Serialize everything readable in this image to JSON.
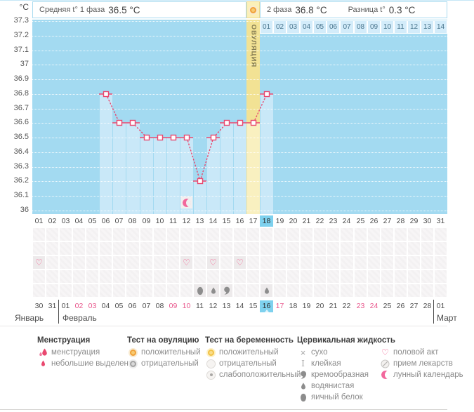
{
  "header": {
    "unit_label": "°C",
    "phase1_label": "Средняя t° 1 фаза",
    "phase1_value": "36.5 °C",
    "phase2_label": "2 фаза",
    "phase2_value": "36.8 °C",
    "diff_label": "Разница t°",
    "diff_value": "0.3 °C"
  },
  "chart_data": {
    "type": "line",
    "ylabel": "°C",
    "ylim": [
      36.0,
      37.3
    ],
    "ytick_labels": [
      "37.3",
      "37.2",
      "37.1",
      "37",
      "36.9",
      "36.8",
      "36.7",
      "36.6",
      "36.5",
      "36.4",
      "36.3",
      "36.2",
      "36.1",
      "36"
    ],
    "x_labels": [
      "01",
      "02",
      "03",
      "04",
      "05",
      "06",
      "07",
      "08",
      "09",
      "10",
      "11",
      "12",
      "13",
      "14",
      "15",
      "16",
      "17",
      "18",
      "19",
      "20",
      "21",
      "22",
      "23",
      "24",
      "25",
      "26",
      "27",
      "28",
      "29",
      "30",
      "31"
    ],
    "series": [
      {
        "name": "basal-temperature",
        "points": [
          [
            6,
            36.8
          ],
          [
            7,
            36.6
          ],
          [
            8,
            36.6
          ],
          [
            9,
            36.5
          ],
          [
            10,
            36.5
          ],
          [
            11,
            36.5
          ],
          [
            12,
            36.5
          ],
          [
            13,
            36.2
          ],
          [
            14,
            36.5
          ],
          [
            15,
            36.6
          ],
          [
            16,
            36.6
          ],
          [
            17,
            36.6
          ],
          [
            18,
            36.8
          ]
        ]
      }
    ],
    "ovulation_band": {
      "day": 17,
      "label": "ОВУЛЯЦИЯ"
    },
    "selected_day": 18,
    "phase2_day_labels": [
      "01",
      "02",
      "03",
      "04",
      "05",
      "06",
      "07",
      "08",
      "09",
      "10",
      "11",
      "12",
      "13",
      "14"
    ],
    "lunar_marker_day": 12,
    "grid": "dotted-horizontal",
    "legend_position": "bottom"
  },
  "timeline": {
    "dates": [
      {
        "label": "30",
        "weekend": false,
        "selected": false
      },
      {
        "label": "31",
        "weekend": false,
        "selected": false
      },
      {
        "label": "01",
        "weekend": false,
        "selected": false
      },
      {
        "label": "02",
        "weekend": true,
        "selected": false
      },
      {
        "label": "03",
        "weekend": true,
        "selected": false
      },
      {
        "label": "04",
        "weekend": false,
        "selected": false
      },
      {
        "label": "05",
        "weekend": false,
        "selected": false
      },
      {
        "label": "06",
        "weekend": false,
        "selected": false
      },
      {
        "label": "07",
        "weekend": false,
        "selected": false
      },
      {
        "label": "08",
        "weekend": false,
        "selected": false
      },
      {
        "label": "09",
        "weekend": true,
        "selected": false
      },
      {
        "label": "10",
        "weekend": true,
        "selected": false
      },
      {
        "label": "11",
        "weekend": false,
        "selected": false
      },
      {
        "label": "12",
        "weekend": false,
        "selected": false
      },
      {
        "label": "13",
        "weekend": false,
        "selected": false
      },
      {
        "label": "14",
        "weekend": false,
        "selected": false
      },
      {
        "label": "15",
        "weekend": false,
        "selected": false
      },
      {
        "label": "16",
        "weekend": false,
        "selected": true
      },
      {
        "label": "17",
        "weekend": true,
        "selected": false
      },
      {
        "label": "18",
        "weekend": false,
        "selected": false
      },
      {
        "label": "19",
        "weekend": false,
        "selected": false
      },
      {
        "label": "20",
        "weekend": false,
        "selected": false
      },
      {
        "label": "21",
        "weekend": false,
        "selected": false
      },
      {
        "label": "22",
        "weekend": false,
        "selected": false
      },
      {
        "label": "23",
        "weekend": true,
        "selected": false
      },
      {
        "label": "24",
        "weekend": true,
        "selected": false
      },
      {
        "label": "25",
        "weekend": false,
        "selected": false
      },
      {
        "label": "26",
        "weekend": false,
        "selected": false
      },
      {
        "label": "27",
        "weekend": false,
        "selected": false
      },
      {
        "label": "28",
        "weekend": false,
        "selected": false
      },
      {
        "label": "01",
        "weekend": false,
        "selected": false
      }
    ],
    "month_divider_cols": [
      2,
      30
    ],
    "months": [
      {
        "label": "Январь"
      },
      {
        "label": "Февраль"
      },
      {
        "label": "Март"
      }
    ],
    "marker_rows": [
      {
        "name": "row-1",
        "markers": []
      },
      {
        "name": "row-2",
        "markers": []
      },
      {
        "name": "row-intercourse",
        "markers": [
          {
            "col": 0,
            "icon": "intercourse"
          },
          {
            "col": 11,
            "icon": "intercourse"
          },
          {
            "col": 13,
            "icon": "intercourse"
          },
          {
            "col": 15,
            "icon": "intercourse"
          }
        ]
      },
      {
        "name": "row-4",
        "markers": []
      },
      {
        "name": "row-cervical-fluid",
        "markers": [
          {
            "col": 12,
            "icon": "egg-white"
          },
          {
            "col": 13,
            "icon": "watery"
          },
          {
            "col": 14,
            "icon": "creamy"
          },
          {
            "col": 17,
            "icon": "watery"
          }
        ]
      }
    ]
  },
  "legend": {
    "groups": [
      {
        "title": "Менструация",
        "items": [
          {
            "icon": "menstruation-heavy",
            "label": "менструация"
          },
          {
            "icon": "menstruation-light",
            "label": "небольшие выделения"
          }
        ]
      },
      {
        "title": "Тест на овуляцию",
        "items": [
          {
            "icon": "ovulation-positive",
            "label": "положительный"
          },
          {
            "icon": "ovulation-negative",
            "label": "отрицательный"
          }
        ]
      },
      {
        "title": "Тест на беременность",
        "items": [
          {
            "icon": "pregnancy-positive",
            "label": "положительный"
          },
          {
            "icon": "pregnancy-negative",
            "label": "отрицательный"
          },
          {
            "icon": "pregnancy-weak-positive",
            "label": "слабоположительный"
          }
        ]
      },
      {
        "title": "Цервикальная жидкость",
        "items": [
          {
            "icon": "dry",
            "label": "сухо"
          },
          {
            "icon": "sticky",
            "label": "клейкая"
          },
          {
            "icon": "creamy",
            "label": "кремообразная"
          },
          {
            "icon": "watery",
            "label": "водянистая"
          },
          {
            "icon": "egg-white",
            "label": "яичный белок"
          }
        ]
      },
      {
        "title": "",
        "items": [
          {
            "icon": "intercourse",
            "label": "половой акт"
          },
          {
            "icon": "medication",
            "label": "прием лекарств"
          },
          {
            "icon": "lunar",
            "label": "лунный календарь"
          }
        ]
      }
    ]
  },
  "icons": {
    "heart_glyph": "♡",
    "dry_glyph": "×",
    "sticky_glyph": "I"
  },
  "colors": {
    "chart_bg": "#a3daf1",
    "column_fill": "#c9e8f8",
    "ovulation_band": "#f2e294",
    "ovulation_band_light": "#f9f0c0",
    "line": "#e9486f",
    "selected_day_bg": "#7ed1ee",
    "weekend_date": "#e8558b",
    "pink": "#f26090",
    "gray_icon": "#8d8d8d",
    "lunar_cell_bg": "#f1eff0"
  }
}
